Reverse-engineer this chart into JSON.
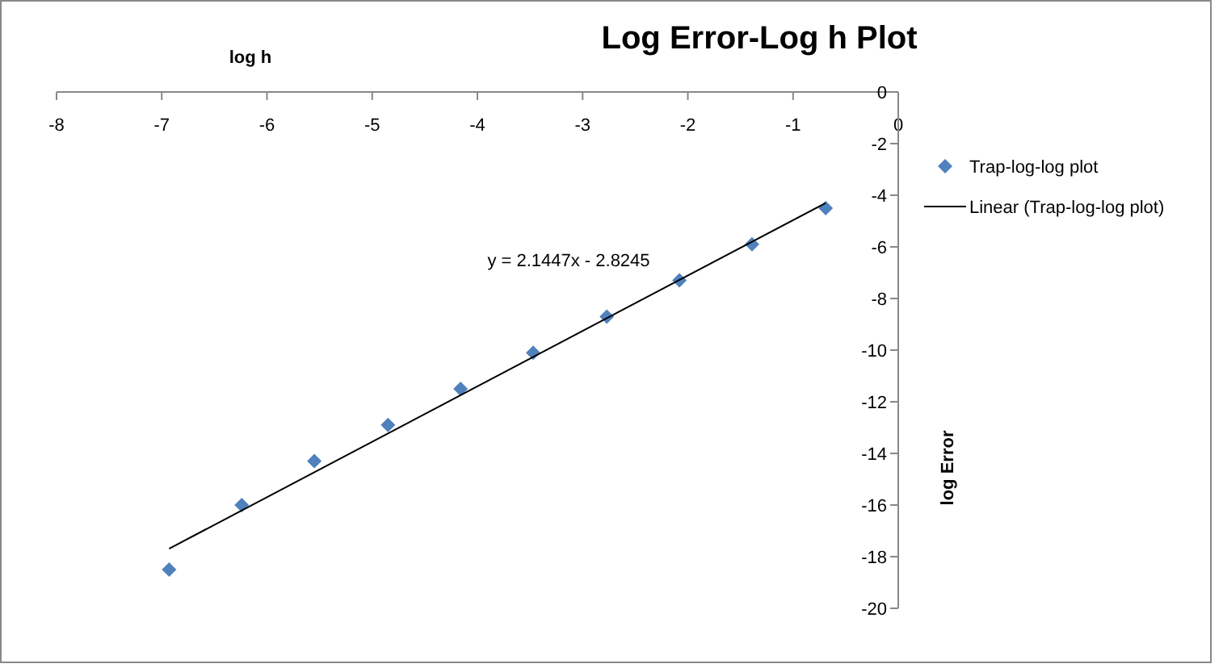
{
  "chart_data": {
    "type": "scatter",
    "title": "Log Error-Log h Plot",
    "xlabel": "log h",
    "ylabel": "log Error",
    "xlim": [
      -8,
      0
    ],
    "xticks": [
      -8,
      -7,
      -6,
      -5,
      -4,
      -3,
      -2,
      -1,
      0
    ],
    "ylim": [
      -20,
      0
    ],
    "yticks": [
      -20,
      -18,
      -16,
      -14,
      -12,
      -10,
      -8,
      -6,
      -4,
      -2,
      0
    ],
    "grid": false,
    "legend": "right",
    "marker": "diamond",
    "series": [
      {
        "name": "Trap-log-log plot",
        "color": "#4f81bd",
        "x": [
          -6.93,
          -6.24,
          -5.55,
          -4.85,
          -4.16,
          -3.47,
          -2.77,
          -2.08,
          -1.39,
          -0.69
        ],
        "values": [
          -18.5,
          -16.0,
          -14.3,
          -12.9,
          -11.5,
          -10.1,
          -8.7,
          -7.3,
          -5.9,
          -4.5
        ]
      },
      {
        "name": "Linear (Trap-log-log plot)",
        "type": "line",
        "color": "#000000",
        "marker": "none",
        "line_style": "solid",
        "x": [
          -6.93,
          -0.69
        ],
        "values": [
          -17.69,
          -4.3
        ]
      }
    ],
    "annotations": [
      "y = 2.1447x - 2.8245"
    ]
  }
}
